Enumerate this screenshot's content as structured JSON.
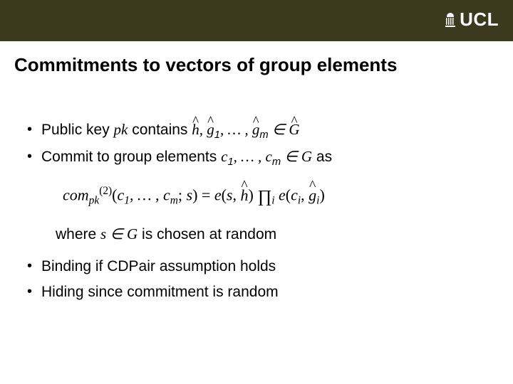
{
  "header": {
    "logo_text": "UCL",
    "background_color": "#3b3a1f"
  },
  "title": "Commitments to vectors of group elements",
  "bullets": {
    "b1_prefix": "Public key ",
    "b1_pk": "pk",
    "b1_mid": " contains ",
    "b1_h": "h",
    "b1_comma1": ", ",
    "b1_g1": "g",
    "b1_g1sub": "1",
    "b1_dots1": ", … , ",
    "b1_gm": "g",
    "b1_gmsub": "m",
    "b1_in": " ∈ ",
    "b1_G": "G",
    "b2_prefix": "Commit to group elements ",
    "b2_c1": "c",
    "b2_c1sub": "1",
    "b2_dots": ", … , ",
    "b2_cm": "c",
    "b2_cmsub": "m",
    "b2_in": " ∈ ",
    "b2_G": "G",
    "b2_suffix": " as",
    "b3": "Binding if CDPair assumption holds",
    "b4": "Hiding since commitment is random"
  },
  "formula": {
    "com": "com",
    "pk": "pk",
    "sup2": "(2)",
    "open": "(",
    "c1": "c",
    "c1sub": "1",
    "dots": ", … , ",
    "cm": "c",
    "cmsub": "m",
    "semis": "; ",
    "s": "s",
    "close": ")",
    "eq": " = ",
    "e1": "e",
    "lp1": "(",
    "s2": "s",
    "comma1": ", ",
    "h": "h",
    "rp1": ") ",
    "prod": "∏",
    "prodsub": "i",
    "sp": " ",
    "e2": "e",
    "lp2": "(",
    "ci": "c",
    "cisub": "i",
    "comma2": ", ",
    "gi": "g",
    "gisub": "i",
    "rp2": ")"
  },
  "where": {
    "prefix": "where ",
    "s": "s",
    "in": " ∈ ",
    "G": "G",
    "suffix": "  is chosen at random"
  }
}
